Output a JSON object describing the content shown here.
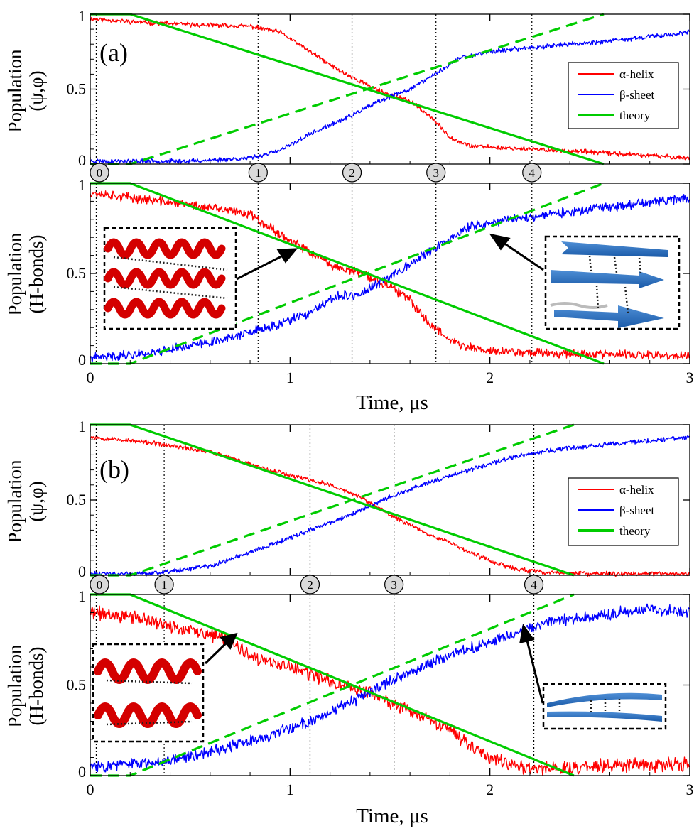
{
  "chart_data": [
    {
      "panel": "(a)",
      "type": "line",
      "xlabel": "Time, μs",
      "xlim": [
        0,
        3
      ],
      "xticks": [
        "0",
        "1",
        "2",
        "3"
      ],
      "legend": {
        "placement": "right",
        "entries": [
          "α-helix",
          "β-sheet",
          "theory"
        ]
      },
      "event_markers": [
        {
          "label": "0",
          "time": 0.03
        },
        {
          "label": "1",
          "time": 0.84
        },
        {
          "label": "2",
          "time": 1.31
        },
        {
          "label": "3",
          "time": 1.73
        },
        {
          "label": "4",
          "time": 2.21
        }
      ],
      "subplots": [
        {
          "ylabel_line1": "Population",
          "ylabel_line2": "(ψ,φ)",
          "ylim": [
            0,
            1
          ],
          "yticks": [
            "0",
            "0.5",
            "1"
          ],
          "series": [
            {
              "name": "α-helix",
              "color": "#ff0000",
              "noise": 0.012,
              "seed": 11,
              "x": [
                0,
                0.2,
                0.5,
                0.8,
                0.95,
                1.1,
                1.25,
                1.4,
                1.5,
                1.6,
                1.7,
                1.8,
                1.9,
                2.2,
                2.5,
                3.0
              ],
              "y": [
                0.97,
                0.95,
                0.93,
                0.92,
                0.88,
                0.75,
                0.62,
                0.52,
                0.46,
                0.42,
                0.32,
                0.18,
                0.12,
                0.1,
                0.08,
                0.04
              ]
            },
            {
              "name": "β-sheet",
              "color": "#0000ff",
              "noise": 0.012,
              "seed": 23,
              "x": [
                0,
                0.5,
                0.8,
                0.95,
                1.1,
                1.3,
                1.45,
                1.6,
                1.75,
                1.85,
                2.0,
                2.3,
                2.6,
                3.0
              ],
              "y": [
                0.02,
                0.02,
                0.04,
                0.09,
                0.2,
                0.32,
                0.42,
                0.5,
                0.62,
                0.71,
                0.75,
                0.79,
                0.82,
                0.88
              ]
            },
            {
              "name": "theory (α-helix)",
              "color": "#00cc00",
              "dash": false,
              "x": [
                0,
                0.2,
                2.57
              ],
              "y": [
                1,
                1,
                0
              ]
            },
            {
              "name": "theory (β-sheet)",
              "color": "#00cc00",
              "dash": true,
              "x": [
                0,
                0.2,
                2.57
              ],
              "y": [
                0,
                0,
                1
              ]
            }
          ]
        },
        {
          "ylabel_line1": "Population",
          "ylabel_line2": "(H-bonds)",
          "ylim": [
            0,
            1
          ],
          "yticks": [
            "0",
            "0.5",
            "1"
          ],
          "series": [
            {
              "name": "α-helix",
              "color": "#ff0000",
              "noise": 0.02,
              "seed": 37,
              "x": [
                0,
                0.2,
                0.5,
                0.8,
                1.0,
                1.2,
                1.35,
                1.5,
                1.6,
                1.7,
                1.85,
                2.0,
                2.3,
                3.0
              ],
              "y": [
                0.95,
                0.92,
                0.88,
                0.83,
                0.68,
                0.55,
                0.5,
                0.43,
                0.35,
                0.22,
                0.1,
                0.07,
                0.06,
                0.04
              ]
            },
            {
              "name": "β-sheet",
              "color": "#0000ff",
              "noise": 0.02,
              "seed": 41,
              "x": [
                0,
                0.3,
                0.6,
                0.9,
                1.1,
                1.25,
                1.35,
                1.45,
                1.55,
                1.7,
                1.9,
                2.1,
                2.4,
                3.0
              ],
              "y": [
                0.03,
                0.06,
                0.12,
                0.2,
                0.28,
                0.38,
                0.38,
                0.45,
                0.52,
                0.62,
                0.76,
                0.8,
                0.84,
                0.92
              ]
            },
            {
              "name": "theory (α-helix)",
              "color": "#00cc00",
              "dash": false,
              "x": [
                0,
                0.2,
                2.57
              ],
              "y": [
                1,
                1,
                0
              ]
            },
            {
              "name": "theory (β-sheet)",
              "color": "#00cc00",
              "dash": true,
              "x": [
                0,
                0.2,
                2.57
              ],
              "y": [
                0,
                0,
                1
              ]
            }
          ]
        }
      ]
    },
    {
      "panel": "(b)",
      "type": "line",
      "xlabel": "Time, μs",
      "xlim": [
        0,
        3
      ],
      "xticks": [
        "0",
        "1",
        "2",
        "3"
      ],
      "legend": {
        "placement": "right",
        "entries": [
          "α-helix",
          "β-sheet",
          "theory"
        ]
      },
      "event_markers": [
        {
          "label": "0",
          "time": 0.03
        },
        {
          "label": "1",
          "time": 0.37
        },
        {
          "label": "2",
          "time": 1.1
        },
        {
          "label": "3",
          "time": 1.52
        },
        {
          "label": "4",
          "time": 2.22
        }
      ],
      "subplots": [
        {
          "ylabel_line1": "Population",
          "ylabel_line2": "(ψ,φ)",
          "ylim": [
            0,
            1
          ],
          "yticks": [
            "0",
            "0.5",
            "1"
          ],
          "series": [
            {
              "name": "α-helix",
              "color": "#ff0000",
              "noise": 0.012,
              "seed": 53,
              "x": [
                0,
                0.3,
                0.6,
                0.9,
                1.2,
                1.35,
                1.5,
                1.7,
                1.8,
                1.9,
                2.1,
                2.25,
                2.5,
                3.0
              ],
              "y": [
                0.92,
                0.88,
                0.82,
                0.7,
                0.6,
                0.52,
                0.4,
                0.27,
                0.22,
                0.15,
                0.05,
                0.02,
                0.01,
                0.01
              ]
            },
            {
              "name": "β-sheet",
              "color": "#0000ff",
              "noise": 0.012,
              "seed": 61,
              "x": [
                0,
                0.3,
                0.6,
                0.9,
                1.1,
                1.3,
                1.5,
                1.7,
                1.9,
                2.1,
                2.3,
                2.6,
                3.0
              ],
              "y": [
                0.01,
                0.01,
                0.06,
                0.2,
                0.3,
                0.4,
                0.52,
                0.62,
                0.7,
                0.78,
                0.83,
                0.87,
                0.92
              ]
            },
            {
              "name": "theory (α-helix)",
              "color": "#00cc00",
              "dash": false,
              "x": [
                0,
                0.2,
                2.42
              ],
              "y": [
                1,
                1,
                0
              ]
            },
            {
              "name": "theory (β-sheet)",
              "color": "#00cc00",
              "dash": true,
              "x": [
                0,
                0.2,
                2.42
              ],
              "y": [
                0,
                0,
                1
              ]
            }
          ]
        },
        {
          "ylabel_line1": "Population",
          "ylabel_line2": "(H-bonds)",
          "ylim": [
            0,
            1
          ],
          "yticks": [
            "0",
            "0.5",
            "1"
          ],
          "series": [
            {
              "name": "α-helix",
              "color": "#ff0000",
              "noise": 0.03,
              "seed": 71,
              "x": [
                0,
                0.2,
                0.5,
                0.7,
                0.8,
                1.0,
                1.2,
                1.4,
                1.6,
                1.8,
                2.0,
                2.2,
                2.5,
                3.0
              ],
              "y": [
                0.9,
                0.88,
                0.8,
                0.75,
                0.65,
                0.6,
                0.52,
                0.46,
                0.35,
                0.25,
                0.1,
                0.04,
                0.05,
                0.06
              ]
            },
            {
              "name": "β-sheet",
              "color": "#0000ff",
              "noise": 0.025,
              "seed": 83,
              "x": [
                0,
                0.3,
                0.6,
                0.9,
                1.1,
                1.3,
                1.5,
                1.7,
                1.9,
                2.1,
                2.3,
                2.5,
                2.8,
                3.0
              ],
              "y": [
                0.05,
                0.07,
                0.13,
                0.22,
                0.3,
                0.4,
                0.52,
                0.62,
                0.7,
                0.78,
                0.85,
                0.88,
                0.92,
                0.9
              ]
            },
            {
              "name": "theory (α-helix)",
              "color": "#00cc00",
              "dash": false,
              "x": [
                0,
                0.2,
                2.42
              ],
              "y": [
                1,
                1,
                0
              ]
            },
            {
              "name": "theory (β-sheet)",
              "color": "#00cc00",
              "dash": true,
              "x": [
                0,
                0.2,
                2.42
              ],
              "y": [
                0,
                0,
                1
              ]
            }
          ]
        }
      ]
    }
  ]
}
